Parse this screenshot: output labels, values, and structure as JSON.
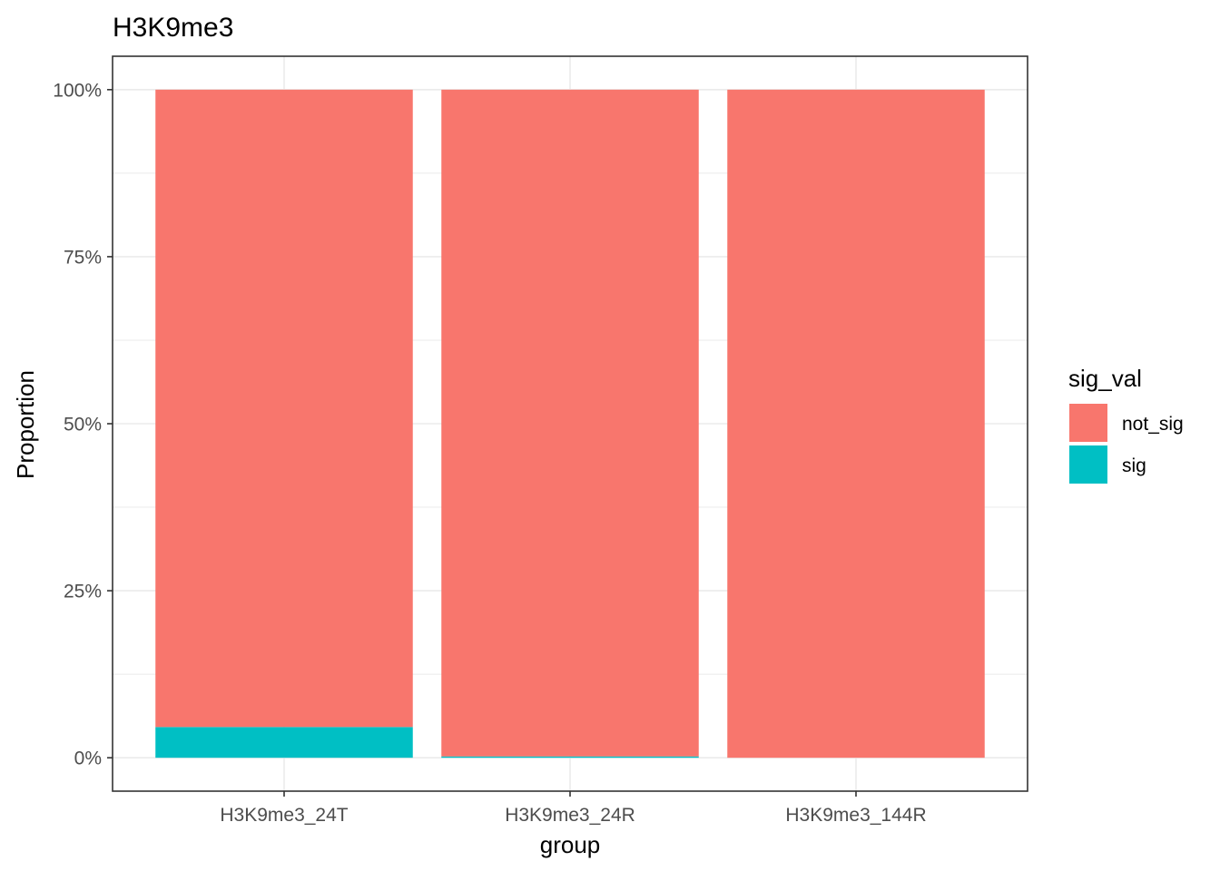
{
  "chart_data": {
    "type": "bar",
    "stacked": true,
    "title": "H3K9me3",
    "xlabel": "group",
    "ylabel": "Proportion",
    "categories": [
      "H3K9me3_24T",
      "H3K9me3_24R",
      "H3K9me3_144R"
    ],
    "series": [
      {
        "name": "not_sig",
        "color": "#F8766D",
        "values": [
          0.954,
          0.998,
          1.0
        ]
      },
      {
        "name": "sig",
        "color": "#00BFC4",
        "values": [
          0.046,
          0.002,
          0.0
        ]
      }
    ],
    "ylim": [
      -0.05,
      1.05
    ],
    "yticks": [
      0,
      0.25,
      0.5,
      0.75,
      1.0
    ],
    "ytick_labels": [
      "0%",
      "25%",
      "50%",
      "75%",
      "100%"
    ],
    "grid": true,
    "legend": {
      "title": "sig_val",
      "position": "right",
      "entries": [
        {
          "label": "not_sig",
          "color": "#F8766D"
        },
        {
          "label": "sig",
          "color": "#00BFC4"
        }
      ]
    }
  }
}
